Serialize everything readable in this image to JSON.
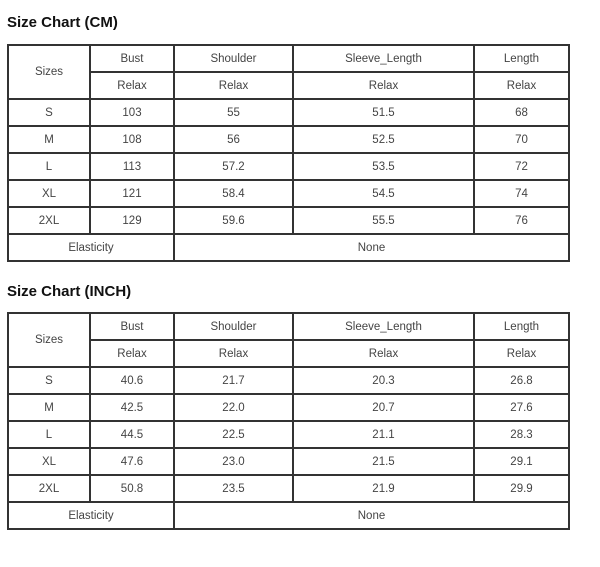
{
  "tables": [
    {
      "title": "Size Chart (CM)",
      "header": {
        "sizes": "Sizes",
        "columns": [
          "Bust",
          "Shoulder",
          "Sleeve_Length",
          "Length"
        ],
        "sub": [
          "Relax",
          "Relax",
          "Relax",
          "Relax"
        ]
      },
      "rows": [
        [
          "S",
          "103",
          "55",
          "51.5",
          "68"
        ],
        [
          "M",
          "108",
          "56",
          "52.5",
          "70"
        ],
        [
          "L",
          "113",
          "57.2",
          "53.5",
          "72"
        ],
        [
          "XL",
          "121",
          "58.4",
          "54.5",
          "74"
        ],
        [
          "2XL",
          "129",
          "59.6",
          "55.5",
          "76"
        ]
      ],
      "footer": {
        "label": "Elasticity",
        "value": "None"
      }
    },
    {
      "title": "Size Chart (INCH)",
      "header": {
        "sizes": "Sizes",
        "columns": [
          "Bust",
          "Shoulder",
          "Sleeve_Length",
          "Length"
        ],
        "sub": [
          "Relax",
          "Relax",
          "Relax",
          "Relax"
        ]
      },
      "rows": [
        [
          "S",
          "40.6",
          "21.7",
          "20.3",
          "26.8"
        ],
        [
          "M",
          "42.5",
          "22.0",
          "20.7",
          "27.6"
        ],
        [
          "L",
          "44.5",
          "22.5",
          "21.1",
          "28.3"
        ],
        [
          "XL",
          "47.6",
          "23.0",
          "21.5",
          "29.1"
        ],
        [
          "2XL",
          "50.8",
          "23.5",
          "21.9",
          "29.9"
        ]
      ],
      "footer": {
        "label": "Elasticity",
        "value": "None"
      }
    }
  ]
}
